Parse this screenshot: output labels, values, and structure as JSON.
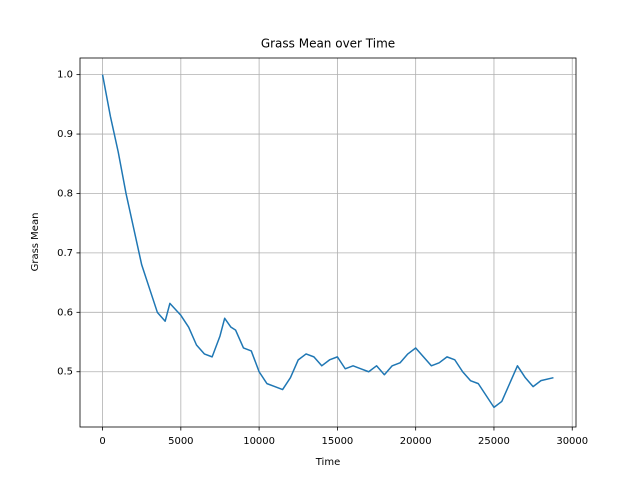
{
  "chart_data": {
    "type": "line",
    "title": "Grass Mean over Time",
    "x_label": "Time",
    "y_label": "Grass Mean",
    "x": [
      0,
      500,
      1000,
      1500,
      2000,
      2500,
      3000,
      3500,
      4000,
      4300,
      5000,
      5500,
      6000,
      6500,
      7000,
      7500,
      7800,
      8200,
      8500,
      9000,
      9500,
      10000,
      10500,
      11000,
      11500,
      12000,
      12500,
      13000,
      13500,
      14000,
      14500,
      15000,
      15500,
      16000,
      16500,
      17000,
      17500,
      18000,
      18500,
      19000,
      19500,
      20000,
      20500,
      21000,
      21500,
      22000,
      22500,
      23000,
      23500,
      24000,
      24500,
      25000,
      25500,
      26000,
      26500,
      27000,
      27500,
      28000,
      28800
    ],
    "series": [
      {
        "name": "Grass Mean",
        "color": "#1f77b4",
        "values": [
          1.0,
          0.93,
          0.87,
          0.8,
          0.74,
          0.68,
          0.64,
          0.6,
          0.585,
          0.615,
          0.595,
          0.575,
          0.545,
          0.53,
          0.525,
          0.56,
          0.59,
          0.575,
          0.57,
          0.54,
          0.535,
          0.5,
          0.48,
          0.475,
          0.47,
          0.49,
          0.52,
          0.53,
          0.525,
          0.51,
          0.52,
          0.525,
          0.505,
          0.51,
          0.505,
          0.5,
          0.51,
          0.495,
          0.51,
          0.515,
          0.53,
          0.54,
          0.525,
          0.51,
          0.515,
          0.525,
          0.52,
          0.5,
          0.485,
          0.48,
          0.46,
          0.44,
          0.45,
          0.48,
          0.51,
          0.49,
          0.475,
          0.485,
          0.49
        ]
      }
    ],
    "xlim": [
      -1440,
      30240
    ],
    "ylim": [
      0.407,
      1.028
    ],
    "xticks": [
      0,
      5000,
      10000,
      15000,
      20000,
      25000,
      30000
    ],
    "yticks": [
      0.5,
      0.6,
      0.7,
      0.8,
      0.9,
      {
        "value": 1,
        "label": "1.0"
      }
    ],
    "grid": true
  }
}
